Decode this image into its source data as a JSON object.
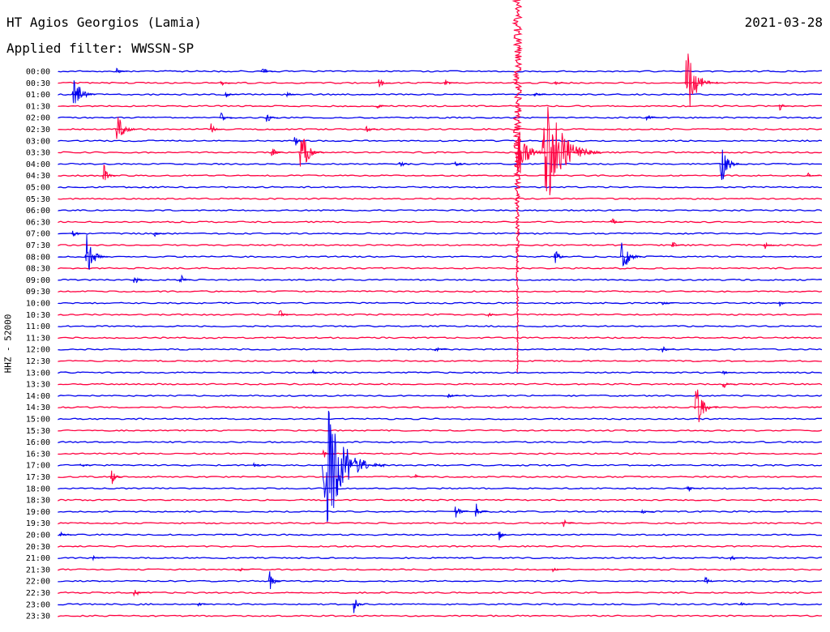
{
  "header": {
    "station": "HT Agios Georgios (Lamia)",
    "filter": "Applied filter: WWSSN-SP",
    "date": "2021-03-28",
    "channel": "HHZ - 52000"
  },
  "colors": {
    "blue": "#0000ee",
    "red": "#ff0040"
  },
  "chart_data": {
    "type": "line",
    "title": "HT Agios Georgios (Lamia)",
    "subtitle": "Applied filter: WWSSN-SP",
    "ylabel": "HHZ - 52000",
    "row_interval_minutes": 30,
    "x": [
      "00:00",
      "00:30",
      "01:00",
      "01:30",
      "02:00",
      "02:30",
      "03:00",
      "03:30",
      "04:00",
      "04:30",
      "05:00",
      "05:30",
      "06:00",
      "06:30",
      "07:00",
      "07:30",
      "08:00",
      "08:30",
      "09:00",
      "09:30",
      "10:00",
      "10:30",
      "11:00",
      "11:30",
      "12:00",
      "12:30",
      "13:00",
      "13:30",
      "14:00",
      "14:30",
      "15:00",
      "15:30",
      "16:00",
      "16:30",
      "17:00",
      "17:30",
      "18:00",
      "18:30",
      "19:00",
      "19:30",
      "20:00",
      "20:30",
      "21:00",
      "21:30",
      "22:00",
      "22:30",
      "23:00",
      "23:30"
    ],
    "series": [
      {
        "name": "blue",
        "rows": [
          "00:00",
          "01:00",
          "02:00",
          "03:00",
          "04:00",
          "05:00",
          "06:00",
          "07:00",
          "08:00",
          "09:00",
          "10:00",
          "11:00",
          "12:00",
          "13:00",
          "14:00",
          "15:00",
          "16:00",
          "17:00",
          "18:00",
          "19:00",
          "20:00",
          "21:00",
          "22:00",
          "23:00"
        ]
      },
      {
        "name": "red",
        "rows": [
          "00:30",
          "01:30",
          "02:30",
          "03:30",
          "04:30",
          "05:30",
          "06:30",
          "07:30",
          "08:30",
          "09:30",
          "10:30",
          "11:30",
          "12:30",
          "13:30",
          "14:30",
          "15:30",
          "16:30",
          "17:30",
          "18:30",
          "19:30",
          "20:30",
          "21:30",
          "22:30",
          "23:30"
        ]
      }
    ],
    "events": [
      {
        "row": "00:00",
        "minute": 2.3,
        "amplitude": 6
      },
      {
        "row": "00:00",
        "minute": 8.0,
        "amplitude": 10
      },
      {
        "row": "00:30",
        "minute": 6.4,
        "amplitude": 5
      },
      {
        "row": "00:30",
        "minute": 12.6,
        "amplitude": 8
      },
      {
        "row": "00:30",
        "minute": 15.2,
        "amplitude": 5
      },
      {
        "row": "00:30",
        "minute": 19.5,
        "amplitude": 3
      },
      {
        "row": "00:30",
        "minute": 24.6,
        "amplitude": 45
      },
      {
        "row": "01:00",
        "minute": 0.6,
        "amplitude": 30
      },
      {
        "row": "01:00",
        "minute": 6.6,
        "amplitude": 4
      },
      {
        "row": "01:00",
        "minute": 9.0,
        "amplitude": 4
      },
      {
        "row": "01:00",
        "minute": 18.7,
        "amplitude": 5
      },
      {
        "row": "01:30",
        "minute": 12.5,
        "amplitude": 5
      },
      {
        "row": "01:30",
        "minute": 28.3,
        "amplitude": 7
      },
      {
        "row": "02:00",
        "minute": 6.4,
        "amplitude": 8
      },
      {
        "row": "02:00",
        "minute": 8.2,
        "amplitude": 8
      },
      {
        "row": "02:00",
        "minute": 23.1,
        "amplitude": 7
      },
      {
        "row": "02:30",
        "minute": 2.3,
        "amplitude": 28
      },
      {
        "row": "02:30",
        "minute": 6.0,
        "amplitude": 8
      },
      {
        "row": "02:30",
        "minute": 12.1,
        "amplitude": 7
      },
      {
        "row": "03:00",
        "minute": 9.3,
        "amplitude": 8
      },
      {
        "row": "03:30",
        "minute": 8.4,
        "amplitude": 8
      },
      {
        "row": "03:30",
        "minute": 9.5,
        "amplitude": 32
      },
      {
        "row": "03:30",
        "minute": 19.0,
        "amplitude": 80
      },
      {
        "row": "04:00",
        "minute": 13.4,
        "amplitude": 7
      },
      {
        "row": "04:00",
        "minute": 15.6,
        "amplitude": 6
      },
      {
        "row": "04:00",
        "minute": 26.0,
        "amplitude": 28
      },
      {
        "row": "04:30",
        "minute": 1.8,
        "amplitude": 16
      },
      {
        "row": "04:30",
        "minute": 29.4,
        "amplitude": 6
      },
      {
        "row": "06:30",
        "minute": 21.7,
        "amplitude": 8
      },
      {
        "row": "07:00",
        "minute": 0.6,
        "amplitude": 8
      },
      {
        "row": "07:00",
        "minute": 3.8,
        "amplitude": 4
      },
      {
        "row": "07:30",
        "minute": 24.1,
        "amplitude": 6
      },
      {
        "row": "07:30",
        "minute": 27.7,
        "amplitude": 8
      },
      {
        "row": "08:00",
        "minute": 1.1,
        "amplitude": 30
      },
      {
        "row": "08:00",
        "minute": 19.5,
        "amplitude": 12
      },
      {
        "row": "08:00",
        "minute": 22.1,
        "amplitude": 28
      },
      {
        "row": "09:00",
        "minute": 3.0,
        "amplitude": 8
      },
      {
        "row": "09:00",
        "minute": 4.8,
        "amplitude": 10
      },
      {
        "row": "10:00",
        "minute": 23.7,
        "amplitude": 4
      },
      {
        "row": "10:00",
        "minute": 28.3,
        "amplitude": 4
      },
      {
        "row": "10:30",
        "minute": 8.7,
        "amplitude": 8
      },
      {
        "row": "10:30",
        "minute": 16.9,
        "amplitude": 4
      },
      {
        "row": "12:00",
        "minute": 14.8,
        "amplitude": 5
      },
      {
        "row": "12:00",
        "minute": 23.7,
        "amplitude": 5
      },
      {
        "row": "13:00",
        "minute": 10.0,
        "amplitude": 4
      },
      {
        "row": "13:00",
        "minute": 26.1,
        "amplitude": 4
      },
      {
        "row": "13:30",
        "minute": 26.1,
        "amplitude": 6
      },
      {
        "row": "14:00",
        "minute": 15.3,
        "amplitude": 4
      },
      {
        "row": "14:30",
        "minute": 25.0,
        "amplitude": 32
      },
      {
        "row": "16:30",
        "minute": 10.4,
        "amplitude": 8
      },
      {
        "row": "17:00",
        "minute": 0.9,
        "amplitude": 4
      },
      {
        "row": "17:00",
        "minute": 7.7,
        "amplitude": 4
      },
      {
        "row": "17:00",
        "minute": 10.4,
        "amplitude": 85
      },
      {
        "row": "17:30",
        "minute": 2.1,
        "amplitude": 12
      },
      {
        "row": "17:30",
        "minute": 14.0,
        "amplitude": 5
      },
      {
        "row": "18:00",
        "minute": 24.7,
        "amplitude": 7
      },
      {
        "row": "19:00",
        "minute": 15.6,
        "amplitude": 12
      },
      {
        "row": "19:00",
        "minute": 16.4,
        "amplitude": 12
      },
      {
        "row": "19:00",
        "minute": 22.9,
        "amplitude": 4
      },
      {
        "row": "19:30",
        "minute": 19.8,
        "amplitude": 8
      },
      {
        "row": "20:00",
        "minute": 0.1,
        "amplitude": 4
      },
      {
        "row": "20:00",
        "minute": 17.3,
        "amplitude": 8
      },
      {
        "row": "21:00",
        "minute": 1.4,
        "amplitude": 4
      },
      {
        "row": "21:00",
        "minute": 26.4,
        "amplitude": 6
      },
      {
        "row": "21:30",
        "minute": 7.1,
        "amplitude": 4
      },
      {
        "row": "21:30",
        "minute": 19.4,
        "amplitude": 4
      },
      {
        "row": "22:00",
        "minute": 8.3,
        "amplitude": 16
      },
      {
        "row": "22:00",
        "minute": 25.4,
        "amplitude": 7
      },
      {
        "row": "22:30",
        "minute": 3.0,
        "amplitude": 8
      },
      {
        "row": "23:00",
        "minute": 5.5,
        "amplitude": 4
      },
      {
        "row": "23:00",
        "minute": 11.6,
        "amplitude": 12
      },
      {
        "row": "23:00",
        "minute": 26.8,
        "amplitude": 4
      }
    ],
    "major_event": {
      "start_row": "03:30",
      "minute": 18.0,
      "peak_amplitude": 170,
      "extends_to_row": "13:00"
    },
    "grid": false
  }
}
